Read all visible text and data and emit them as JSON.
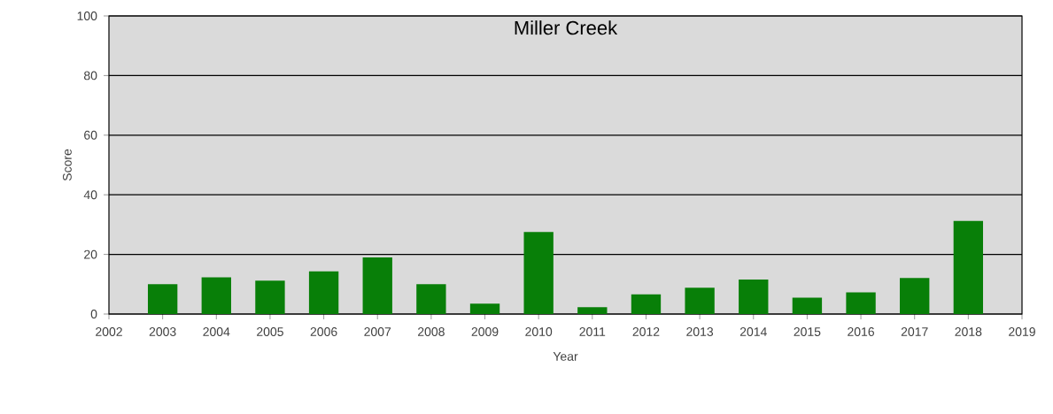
{
  "chart_data": {
    "type": "bar",
    "title": "Miller Creek",
    "xlabel": "Year",
    "ylabel": "Score",
    "x": [
      2003,
      2004,
      2005,
      2006,
      2007,
      2008,
      2009,
      2010,
      2011,
      2012,
      2013,
      2014,
      2015,
      2016,
      2017,
      2018
    ],
    "values": [
      10.0,
      12.3,
      11.2,
      14.3,
      19,
      10,
      3.5,
      27.5,
      2.3,
      6.6,
      8.8,
      11.6,
      5.5,
      7.3,
      12.1,
      31.2
    ],
    "color": "#087f08",
    "xlim": [
      2002,
      2019
    ],
    "xticks": [
      2002,
      2003,
      2004,
      2005,
      2006,
      2007,
      2008,
      2009,
      2010,
      2011,
      2012,
      2013,
      2014,
      2015,
      2016,
      2017,
      2018,
      2019
    ],
    "ylim": [
      0,
      100
    ],
    "yticks": [
      0,
      20,
      40,
      60,
      80,
      100
    ],
    "grid": "y"
  }
}
